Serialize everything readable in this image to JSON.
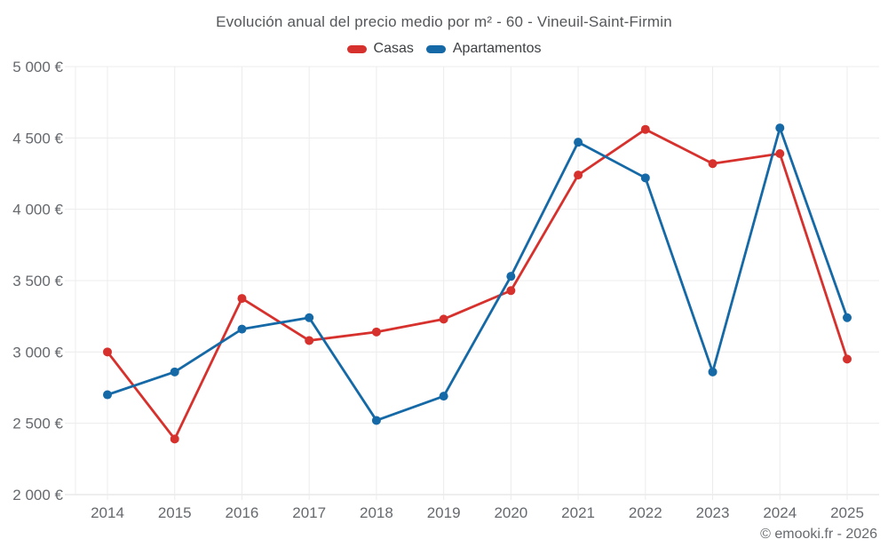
{
  "page": {
    "footer": "© emooki.fr - 2026"
  },
  "chart_data": {
    "type": "line",
    "title": "Evolución anual del precio medio por m² - 60 - Vineuil-Saint-Firmin",
    "categories": [
      "2014",
      "2015",
      "2016",
      "2017",
      "2018",
      "2019",
      "2020",
      "2021",
      "2022",
      "2023",
      "2024",
      "2025"
    ],
    "series": [
      {
        "name": "Casas",
        "color": "#d7312d",
        "values": [
          3000,
          2390,
          3375,
          3080,
          3140,
          3230,
          3430,
          4240,
          4560,
          4320,
          4390,
          2950
        ]
      },
      {
        "name": "Apartamentos",
        "color": "#1469a6",
        "values": [
          2700,
          2860,
          3160,
          3240,
          2520,
          2690,
          3530,
          4470,
          4220,
          2860,
          4570,
          3240
        ]
      }
    ],
    "ylim": [
      2000,
      5000
    ],
    "yticks": [
      {
        "value": 2000,
        "label": "2 000 €"
      },
      {
        "value": 2500,
        "label": "2 500 €"
      },
      {
        "value": 3000,
        "label": "3 000 €"
      },
      {
        "value": 3500,
        "label": "3 500 €"
      },
      {
        "value": 4000,
        "label": "4 000 €"
      },
      {
        "value": 4500,
        "label": "4 500 €"
      },
      {
        "value": 5000,
        "label": "5 000 €"
      }
    ],
    "grid": true,
    "legend_position": "top",
    "colors": {
      "grid": "#ececec",
      "axis": "#dcdcdc",
      "tick_text": "#65696e"
    }
  }
}
